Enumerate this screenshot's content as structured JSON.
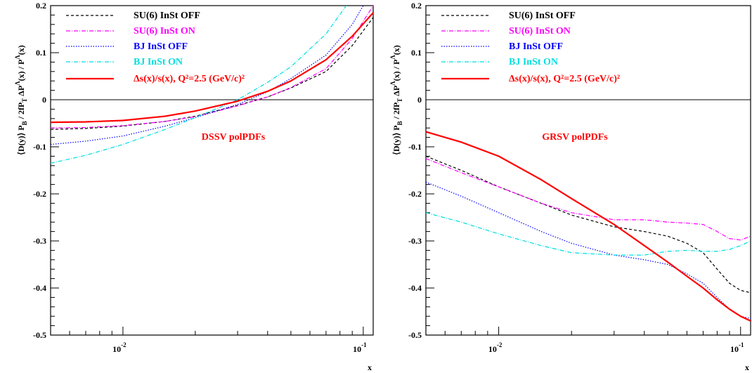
{
  "chart_data": [
    {
      "type": "line",
      "annotation": "DSSV polPDFs",
      "xlabel": "x",
      "ylabel": {
        "base": "⟨D(y)⟩ P",
        "b": "B",
        "mid": " / 2fP",
        "t": "T",
        "mid2": " ΔP",
        "lam1": "Λ",
        "mid3": "(x) / P",
        "lam2": "Λ",
        "end": "(x)"
      },
      "x_scale": "log",
      "xlim": [
        0.005,
        0.11
      ],
      "ylim": [
        -0.5,
        0.2
      ],
      "yticks": [
        "0.2",
        "0.1",
        "0",
        "-0.1",
        "-0.2",
        "-0.3",
        "-0.4",
        "-0.5"
      ],
      "xticks": [
        {
          "base": "10",
          "exp": "-2",
          "value": 0.01
        },
        {
          "base": "10",
          "exp": "-1",
          "value": 0.1
        }
      ],
      "legend_position": "top-left",
      "series": [
        {
          "name": "SU(6) InSt OFF",
          "color": "#000000",
          "dash": "4,3",
          "width": 1.2,
          "x": [
            0.005,
            0.007,
            0.01,
            0.015,
            0.02,
            0.03,
            0.04,
            0.05,
            0.07,
            0.09,
            0.11
          ],
          "y": [
            -0.063,
            -0.061,
            -0.056,
            -0.046,
            -0.035,
            -0.012,
            0.006,
            0.025,
            0.06,
            0.115,
            0.175
          ]
        },
        {
          "name": "SU(6) InSt ON",
          "color": "#ff00ff",
          "dash": "6,2,1,2",
          "width": 1.2,
          "x": [
            0.005,
            0.007,
            0.01,
            0.015,
            0.02,
            0.03,
            0.04,
            0.05,
            0.07,
            0.09,
            0.11
          ],
          "y": [
            -0.06,
            -0.059,
            -0.055,
            -0.046,
            -0.036,
            -0.013,
            0.006,
            0.026,
            0.066,
            0.13,
            0.2
          ]
        },
        {
          "name": "BJ InSt OFF",
          "color": "#0000ff",
          "dash": "1.5,2",
          "width": 1.2,
          "x": [
            0.005,
            0.007,
            0.01,
            0.015,
            0.02,
            0.03,
            0.04,
            0.05,
            0.07,
            0.09,
            0.1
          ],
          "y": [
            -0.095,
            -0.088,
            -0.077,
            -0.056,
            -0.038,
            -0.01,
            0.017,
            0.045,
            0.095,
            0.16,
            0.2
          ]
        },
        {
          "name": "BJ InSt ON",
          "color": "#00dddd",
          "dash": "6,2,1,2",
          "width": 1.2,
          "x": [
            0.005,
            0.007,
            0.01,
            0.015,
            0.02,
            0.03,
            0.04,
            0.05,
            0.07,
            0.085
          ],
          "y": [
            -0.135,
            -0.118,
            -0.095,
            -0.063,
            -0.038,
            0.0,
            0.037,
            0.07,
            0.14,
            0.2
          ]
        },
        {
          "name": "Δs(x)/s(x), Q²=2.5 (GeV/c)²",
          "color": "#ff0000",
          "dash": "",
          "width": 2.2,
          "x": [
            0.005,
            0.007,
            0.01,
            0.015,
            0.02,
            0.03,
            0.04,
            0.05,
            0.07,
            0.09,
            0.11
          ],
          "y": [
            -0.048,
            -0.047,
            -0.044,
            -0.035,
            -0.024,
            -0.003,
            0.018,
            0.04,
            0.085,
            0.135,
            0.185
          ]
        }
      ]
    },
    {
      "type": "line",
      "annotation": "GRSV polPDFs",
      "xlabel": "x",
      "ylabel": {
        "base": "⟨D(y)⟩ P",
        "b": "B",
        "mid": " / 2fP",
        "t": "T",
        "mid2": " ΔP",
        "lam1": "Λ",
        "mid3": "(x) / P",
        "lam2": "Λ",
        "end": "(x)"
      },
      "x_scale": "log",
      "xlim": [
        0.005,
        0.11
      ],
      "ylim": [
        -0.5,
        0.2
      ],
      "yticks": [
        "0.2",
        "0.1",
        "0",
        "-0.1",
        "-0.2",
        "-0.3",
        "-0.4",
        "-0.5"
      ],
      "xticks": [
        {
          "base": "10",
          "exp": "-2",
          "value": 0.01
        },
        {
          "base": "10",
          "exp": "-1",
          "value": 0.1
        }
      ],
      "legend_position": "top-left",
      "series": [
        {
          "name": "SU(6) InSt OFF",
          "color": "#000000",
          "dash": "4,3",
          "width": 1.2,
          "x": [
            0.005,
            0.007,
            0.01,
            0.015,
            0.02,
            0.03,
            0.04,
            0.05,
            0.06,
            0.07,
            0.08,
            0.09,
            0.1,
            0.11
          ],
          "y": [
            -0.12,
            -0.15,
            -0.185,
            -0.22,
            -0.245,
            -0.27,
            -0.28,
            -0.29,
            -0.305,
            -0.325,
            -0.36,
            -0.39,
            -0.405,
            -0.41
          ]
        },
        {
          "name": "SU(6) InSt ON",
          "color": "#ff00ff",
          "dash": "6,2,1,2",
          "width": 1.2,
          "x": [
            0.005,
            0.007,
            0.01,
            0.015,
            0.02,
            0.03,
            0.04,
            0.05,
            0.06,
            0.07,
            0.08,
            0.09,
            0.1,
            0.11
          ],
          "y": [
            -0.125,
            -0.155,
            -0.185,
            -0.22,
            -0.24,
            -0.255,
            -0.255,
            -0.26,
            -0.262,
            -0.265,
            -0.28,
            -0.295,
            -0.298,
            -0.29
          ]
        },
        {
          "name": "BJ InSt OFF",
          "color": "#0000ff",
          "dash": "1.5,2",
          "width": 1.2,
          "x": [
            0.005,
            0.007,
            0.01,
            0.015,
            0.02,
            0.03,
            0.04,
            0.05,
            0.06,
            0.07,
            0.08,
            0.09,
            0.1,
            0.11
          ],
          "y": [
            -0.175,
            -0.205,
            -0.24,
            -0.28,
            -0.305,
            -0.33,
            -0.34,
            -0.35,
            -0.37,
            -0.39,
            -0.42,
            -0.445,
            -0.46,
            -0.465
          ]
        },
        {
          "name": "BJ InSt ON",
          "color": "#00dddd",
          "dash": "6,2,1,2",
          "width": 1.2,
          "x": [
            0.005,
            0.007,
            0.01,
            0.015,
            0.02,
            0.03,
            0.04,
            0.05,
            0.06,
            0.07,
            0.08,
            0.09,
            0.1,
            0.11
          ],
          "y": [
            -0.24,
            -0.26,
            -0.285,
            -0.31,
            -0.325,
            -0.33,
            -0.33,
            -0.322,
            -0.32,
            -0.322,
            -0.322,
            -0.318,
            -0.31,
            -0.3
          ]
        },
        {
          "name": "Δs(x)/s(x), Q²=2.5 (GeV/c)²",
          "color": "#ff0000",
          "dash": "",
          "width": 2.2,
          "x": [
            0.005,
            0.007,
            0.01,
            0.015,
            0.02,
            0.03,
            0.04,
            0.05,
            0.06,
            0.07,
            0.08,
            0.09,
            0.1,
            0.11
          ],
          "y": [
            -0.068,
            -0.09,
            -0.12,
            -0.17,
            -0.21,
            -0.265,
            -0.31,
            -0.345,
            -0.375,
            -0.4,
            -0.425,
            -0.445,
            -0.46,
            -0.47
          ]
        }
      ]
    }
  ]
}
